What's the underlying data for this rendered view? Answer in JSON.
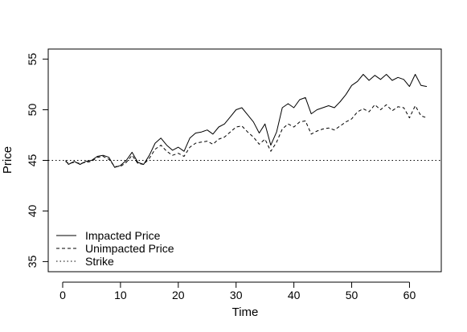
{
  "chart_data": {
    "type": "line",
    "title": "",
    "xlabel": "Time",
    "ylabel": "Price",
    "xlim": [
      -2.5,
      65.5
    ],
    "ylim": [
      34,
      56
    ],
    "x_ticks": [
      0,
      10,
      20,
      30,
      40,
      50,
      60
    ],
    "y_ticks": [
      35,
      40,
      45,
      50,
      55
    ],
    "grid": false,
    "legend_position": "bottom-left",
    "series": [
      {
        "name": "Impacted Price",
        "line_style": "solid",
        "color": "#000000",
        "x": [
          0.5,
          1,
          2,
          3,
          4,
          5,
          6,
          7,
          8,
          9,
          10,
          11,
          12,
          13,
          14,
          15,
          16,
          17,
          18,
          19,
          20,
          21,
          22,
          23,
          24,
          25,
          26,
          27,
          28,
          29,
          30,
          31,
          32,
          33,
          34,
          35,
          36,
          37,
          38,
          39,
          40,
          41,
          42,
          43,
          44,
          45,
          46,
          47,
          48,
          49,
          50,
          51,
          52,
          53,
          54,
          55,
          56,
          57,
          58,
          59,
          60,
          61,
          62,
          63
        ],
        "y": [
          45.0,
          44.6,
          44.9,
          44.6,
          44.9,
          45.0,
          45.4,
          45.5,
          45.3,
          44.3,
          44.5,
          45.0,
          45.8,
          44.8,
          44.6,
          45.5,
          46.7,
          47.2,
          46.5,
          46.0,
          46.3,
          45.9,
          47.2,
          47.7,
          47.8,
          48.0,
          47.6,
          48.3,
          48.6,
          49.3,
          50.0,
          50.2,
          49.5,
          48.8,
          47.7,
          48.6,
          46.5,
          47.8,
          50.2,
          50.6,
          50.2,
          51.0,
          51.2,
          49.6,
          50.0,
          50.2,
          50.4,
          50.2,
          50.8,
          51.5,
          52.4,
          52.8,
          53.5,
          52.9,
          53.4,
          53.0,
          53.5,
          52.9,
          53.2,
          53.0,
          52.3,
          53.5,
          52.4,
          52.3
        ]
      },
      {
        "name": "Unimpacted Price",
        "line_style": "dashed",
        "color": "#000000",
        "x": [
          0.5,
          1,
          2,
          3,
          4,
          5,
          6,
          7,
          8,
          9,
          10,
          11,
          12,
          13,
          14,
          15,
          16,
          17,
          18,
          19,
          20,
          21,
          22,
          23,
          24,
          25,
          26,
          27,
          28,
          29,
          30,
          31,
          32,
          33,
          34,
          35,
          36,
          37,
          38,
          39,
          40,
          41,
          42,
          43,
          44,
          45,
          46,
          47,
          48,
          49,
          50,
          51,
          52,
          53,
          54,
          55,
          56,
          57,
          58,
          59,
          60,
          61,
          62,
          63
        ],
        "y": [
          44.9,
          44.7,
          44.8,
          44.7,
          44.8,
          44.9,
          45.3,
          45.4,
          45.1,
          44.4,
          44.4,
          44.8,
          45.5,
          44.7,
          44.6,
          45.2,
          46.1,
          46.5,
          45.9,
          45.5,
          45.7,
          45.4,
          46.3,
          46.7,
          46.8,
          46.9,
          46.6,
          47.1,
          47.3,
          47.8,
          48.3,
          48.4,
          47.8,
          47.3,
          46.6,
          47.1,
          45.9,
          46.8,
          48.1,
          48.6,
          48.3,
          48.8,
          48.9,
          47.6,
          47.9,
          48.1,
          48.2,
          48.0,
          48.4,
          48.8,
          49.1,
          49.8,
          50.1,
          49.8,
          50.5,
          50.0,
          50.5,
          49.9,
          50.3,
          50.2,
          49.2,
          50.4,
          49.4,
          49.2
        ]
      },
      {
        "name": "Strike",
        "line_style": "dotted",
        "color": "#000000",
        "x": [
          -2.5,
          65.5
        ],
        "y": [
          45,
          45
        ]
      }
    ]
  }
}
